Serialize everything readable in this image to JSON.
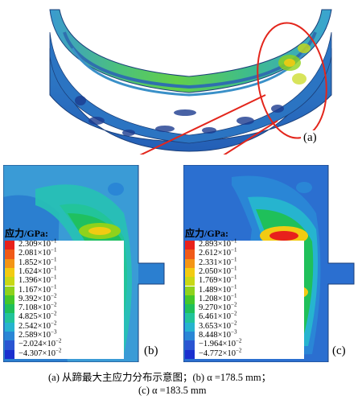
{
  "figure": {
    "panel_a_label": "(a)",
    "panel_b_label": "(b)",
    "panel_c_label": "(c)",
    "legend_b": {
      "title": "应力/GPa:",
      "entries": [
        {
          "mant": "2.309×10",
          "exp": "−1",
          "color": "#e8211c"
        },
        {
          "mant": "2.081×10",
          "exp": "−1",
          "color": "#f05a18"
        },
        {
          "mant": "1.852×10",
          "exp": "−1",
          "color": "#f49516"
        },
        {
          "mant": "1.624×10",
          "exp": "−1",
          "color": "#f2cb12"
        },
        {
          "mant": "1.396×10",
          "exp": "−1",
          "color": "#c8d815"
        },
        {
          "mant": "1.167×10",
          "exp": "−1",
          "color": "#8fd21c"
        },
        {
          "mant": "9.392×10",
          "exp": "−2",
          "color": "#44c72a"
        },
        {
          "mant": "7.108×10",
          "exp": "−2",
          "color": "#1fc05a"
        },
        {
          "mant": "4.825×10",
          "exp": "−2",
          "color": "#22c49a"
        },
        {
          "mant": "2.542×10",
          "exp": "−2",
          "color": "#26b4cf"
        },
        {
          "mant": "2.589×10",
          "exp": "−3",
          "color": "#2a86d6"
        },
        {
          "mant": "−2.024×10",
          "exp": "−2",
          "color": "#2a55d2"
        },
        {
          "mant": "−4.307×10",
          "exp": "−2",
          "color": "#1a2fcf"
        }
      ]
    },
    "legend_c": {
      "title": "应力/GPa:",
      "entries": [
        {
          "mant": "2.893×10",
          "exp": "−1",
          "color": "#e8211c"
        },
        {
          "mant": "2.612×10",
          "exp": "−1",
          "color": "#f05a18"
        },
        {
          "mant": "2.331×10",
          "exp": "−1",
          "color": "#f49516"
        },
        {
          "mant": "2.050×10",
          "exp": "−1",
          "color": "#f2cb12"
        },
        {
          "mant": "1.769×10",
          "exp": "−1",
          "color": "#c8d815"
        },
        {
          "mant": "1.489×10",
          "exp": "−1",
          "color": "#8fd21c"
        },
        {
          "mant": "1.208×10",
          "exp": "−1",
          "color": "#44c72a"
        },
        {
          "mant": "9.270×10",
          "exp": "−2",
          "color": "#1fc05a"
        },
        {
          "mant": "6.461×10",
          "exp": "−2",
          "color": "#22c49a"
        },
        {
          "mant": "3.653×10",
          "exp": "−2",
          "color": "#26b4cf"
        },
        {
          "mant": "8.448×10",
          "exp": "−3",
          "color": "#2a86d6"
        },
        {
          "mant": "−1.964×10",
          "exp": "−2",
          "color": "#2a55d2"
        },
        {
          "mant": "−4.772×10",
          "exp": "−2",
          "color": "#1a2fcf"
        }
      ]
    },
    "caption_line1": "(a)  从蹄最大主应力分布示意图；(b)  α =178.5 mm；",
    "caption_line2": "(c)  α =183.5 mm"
  }
}
